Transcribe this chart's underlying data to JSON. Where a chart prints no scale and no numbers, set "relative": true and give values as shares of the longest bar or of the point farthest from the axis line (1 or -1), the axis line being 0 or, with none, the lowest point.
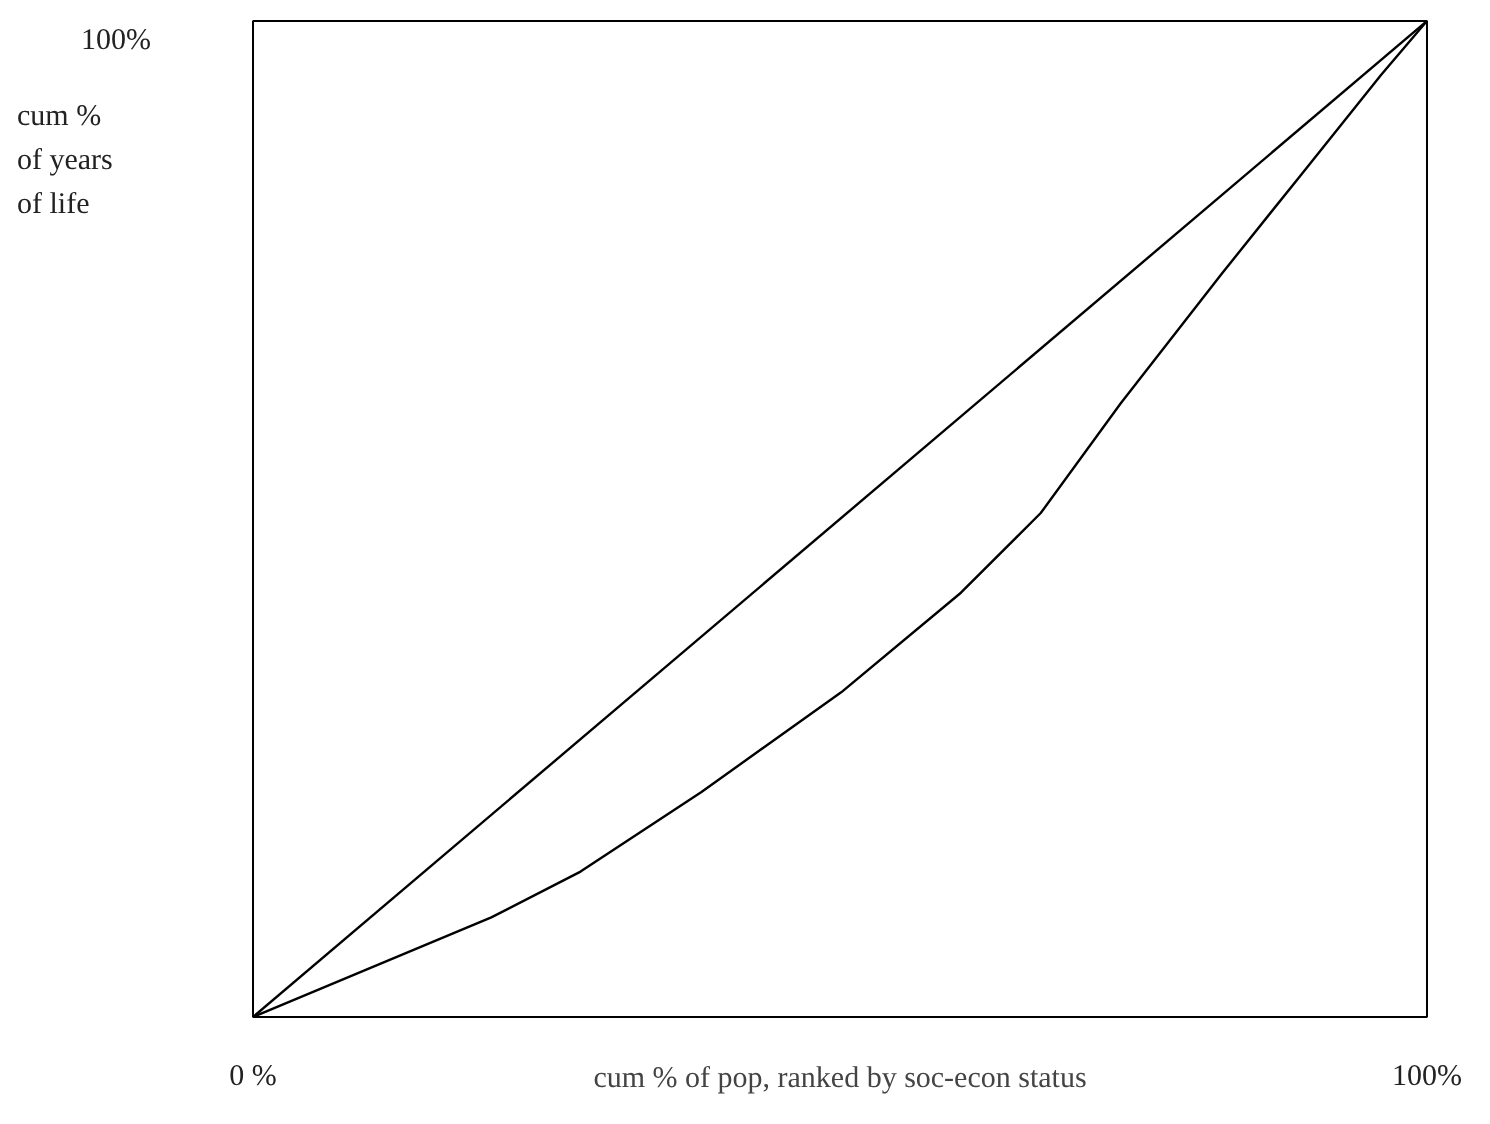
{
  "chart_data": {
    "type": "line",
    "xlabel": "cum % of pop, ranked by soc-econ status",
    "ylabel": "cum %\nof years\nof life",
    "annotations": [
      "100%"
    ],
    "relative": true,
    "xlim": [
      0,
      100
    ],
    "xticks": [
      {
        "value": 0,
        "label": "0 %"
      },
      {
        "value": 100,
        "label": "100%"
      }
    ],
    "marker": "none",
    "line_style": "solid",
    "series": [
      {
        "color": "#000000",
        "x": [
          0,
          100
        ],
        "values": [
          0,
          1
        ]
      },
      {
        "color": "#000000",
        "x": [
          0,
          20.3,
          27.9,
          38.2,
          50.1,
          60.3,
          67.1,
          73.9,
          82.5,
          89.3,
          96.1,
          100
        ],
        "values": [
          0,
          0.1,
          0.146,
          0.226,
          0.326,
          0.426,
          0.506,
          0.616,
          0.746,
          0.846,
          0.946,
          1
        ]
      }
    ]
  }
}
